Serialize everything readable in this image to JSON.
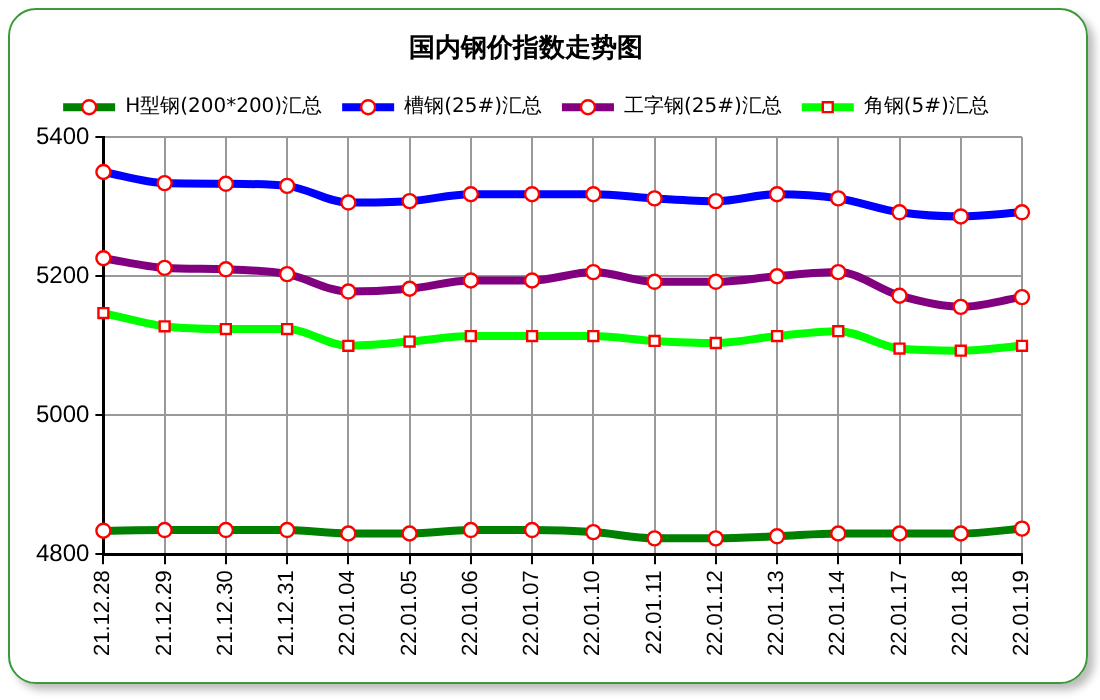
{
  "chart_data": {
    "type": "line",
    "title": "国内钢价指数走势图",
    "categories": [
      "21.12.28",
      "21.12.29",
      "21.12.30",
      "21.12.31",
      "22.01.04",
      "22.01.05",
      "22.01.06",
      "22.01.07",
      "22.01.10",
      "22.01.11",
      "22.01.12",
      "22.01.13",
      "22.01.14",
      "22.01.17",
      "22.01.18",
      "22.01.19"
    ],
    "series": [
      {
        "name": "H型钢(200*200)汇总",
        "color": "#008000",
        "values": [
          4834,
          4835,
          4835,
          4835,
          4830,
          4830,
          4835,
          4835,
          4832,
          4823,
          4823,
          4826,
          4830,
          4830,
          4830,
          4837
        ]
      },
      {
        "name": "槽钢(25#)汇总",
        "color": "#0000ff",
        "values": [
          5350,
          5334,
          5333,
          5330,
          5306,
          5308,
          5318,
          5318,
          5318,
          5312,
          5308,
          5318,
          5312,
          5292,
          5286,
          5292
        ]
      },
      {
        "name": "工字钢(25#)汇总",
        "color": "#800080",
        "values": [
          5226,
          5212,
          5210,
          5203,
          5178,
          5182,
          5194,
          5194,
          5206,
          5192,
          5192,
          5200,
          5206,
          5172,
          5156,
          5170
        ]
      },
      {
        "name": "角钢(5#)汇总",
        "color": "#00ff00",
        "marker": "square",
        "values": [
          5147,
          5128,
          5124,
          5124,
          5100,
          5106,
          5114,
          5114,
          5114,
          5107,
          5104,
          5114,
          5121,
          5096,
          5093,
          5100
        ]
      }
    ],
    "ylim": [
      4800,
      5400
    ],
    "yticks": [
      4800,
      5000,
      5200,
      5400
    ],
    "grid": true,
    "legend": "top",
    "marker": "circle"
  }
}
